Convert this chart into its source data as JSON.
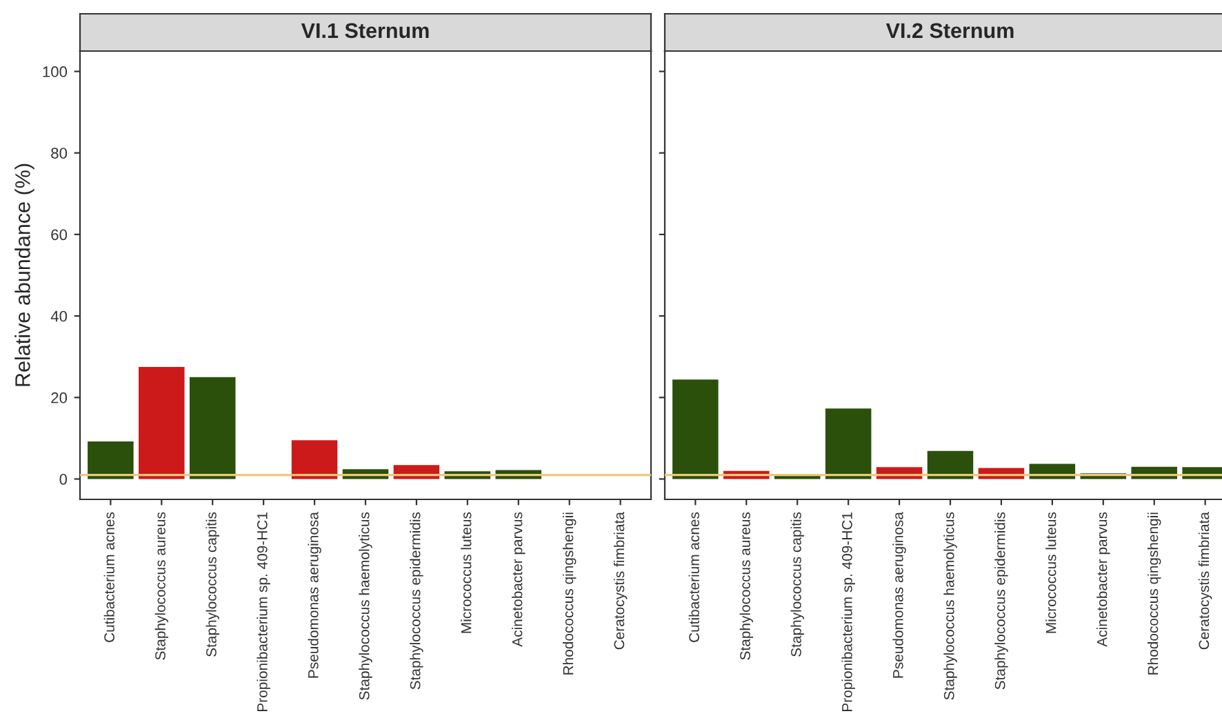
{
  "chart_data": [
    {
      "type": "bar",
      "title": "VI.1 Sternum",
      "ylabel": "Relative abundance (%)",
      "categories": [
        "Cutibacterium acnes",
        "Staphylococcus aureus",
        "Staphylococcus capitis",
        "Propionibacterium sp. 409-HC1",
        "Pseudomonas aeruginosa",
        "Staphylococcus haemolyticus",
        "Staphylococcus epidermidis",
        "Micrococcus luteus",
        "Acinetobacter parvus",
        "Rhodococcus qingshengii",
        "Ceratocystis fimbriata"
      ],
      "values": [
        9.2,
        27.5,
        25,
        0,
        9.5,
        2.4,
        3.4,
        1.9,
        2.2,
        0,
        0
      ],
      "colors": [
        "#2b500b",
        "#cc1a1a",
        "#2b500b",
        "#2b500b",
        "#cc1a1a",
        "#2b500b",
        "#cc1a1a",
        "#2b500b",
        "#2b500b",
        "#2b500b",
        "#2b500b"
      ],
      "ylim": [
        -5,
        105
      ],
      "yticks": [
        0,
        20,
        40,
        60,
        80,
        100
      ],
      "grid": false,
      "legend": false,
      "ref_lines": [
        {
          "axis": "y",
          "value": 1,
          "label": null,
          "color": "#f0c878"
        }
      ]
    },
    {
      "type": "bar",
      "title": "VI.2 Sternum",
      "categories": [
        "Cutibacterium acnes",
        "Staphylococcus aureus",
        "Staphylococcus capitis",
        "Propionibacterium sp. 409-HC1",
        "Pseudomonas aeruginosa",
        "Staphylococcus haemolyticus",
        "Staphylococcus epidermidis",
        "Micrococcus luteus",
        "Acinetobacter parvus",
        "Rhodococcus qingshengii",
        "Ceratocystis fimbriata"
      ],
      "values": [
        24.4,
        2.0,
        1.2,
        17.3,
        2.9,
        6.9,
        2.7,
        3.7,
        1.4,
        3.0,
        2.9
      ],
      "colors": [
        "#2b500b",
        "#cc1a1a",
        "#2b500b",
        "#2b500b",
        "#cc1a1a",
        "#2b500b",
        "#cc1a1a",
        "#2b500b",
        "#2b500b",
        "#2b500b",
        "#2b500b"
      ],
      "ylim": [
        -5,
        105
      ],
      "yticks": [
        0,
        20,
        40,
        60,
        80,
        100
      ],
      "grid": false,
      "legend": false,
      "tick_labels": "x",
      "ref_lines": [
        {
          "axis": "y",
          "value": 1,
          "label": null,
          "color": "#f0c878"
        }
      ]
    }
  ]
}
